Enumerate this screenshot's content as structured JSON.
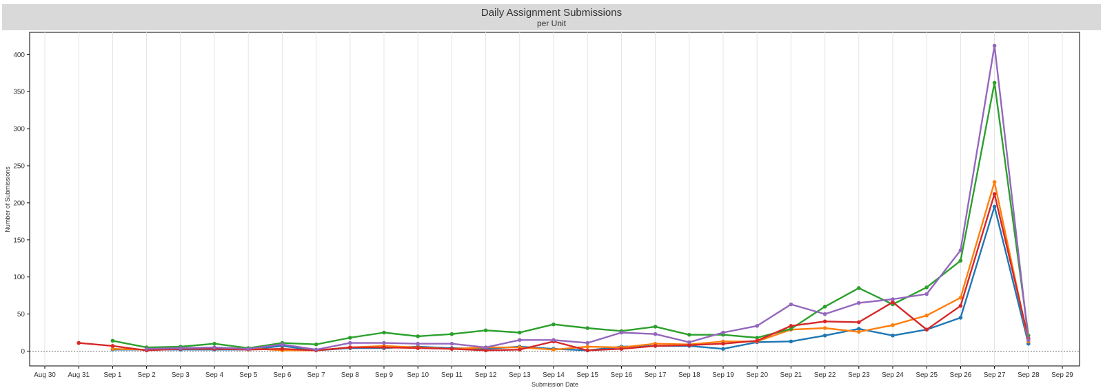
{
  "chart_data": {
    "type": "line",
    "title": "Daily Assignment Submissions",
    "subtitle": "per Unit",
    "xlabel": "Submission Date",
    "ylabel": "Number of Submissions",
    "categories": [
      "Aug 30",
      "Aug 31",
      "Sep 1",
      "Sep 2",
      "Sep 3",
      "Sep 4",
      "Sep 5",
      "Sep 6",
      "Sep 7",
      "Sep 8",
      "Sep 9",
      "Sep 10",
      "Sep 11",
      "Sep 12",
      "Sep 13",
      "Sep 14",
      "Sep 15",
      "Sep 16",
      "Sep 17",
      "Sep 18",
      "Sep 19",
      "Sep 20",
      "Sep 21",
      "Sep 22",
      "Sep 23",
      "Sep 24",
      "Sep 25",
      "Sep 26",
      "Sep 27",
      "Sep 28",
      "Sep 29"
    ],
    "ylim": [
      -20,
      430
    ],
    "yticks": [
      0,
      50,
      100,
      150,
      200,
      250,
      300,
      350,
      400
    ],
    "grid": true,
    "legend": "none",
    "series": [
      {
        "color": "#1f77b4",
        "values": [
          null,
          null,
          2,
          2,
          2,
          2,
          2,
          7,
          1,
          4,
          4,
          6,
          4,
          3,
          6,
          3,
          1,
          6,
          7,
          7,
          3,
          12,
          13,
          21,
          30,
          21,
          29,
          45,
          195,
          10,
          null
        ]
      },
      {
        "color": "#ff7f0e",
        "values": [
          null,
          null,
          3,
          2,
          3,
          3,
          4,
          1,
          1,
          5,
          7,
          5,
          3,
          5,
          5,
          2,
          6,
          5,
          10,
          9,
          13,
          13,
          29,
          31,
          26,
          35,
          48,
          72,
          228,
          13,
          null
        ]
      },
      {
        "color": "#2ca02c",
        "values": [
          null,
          null,
          14,
          5,
          6,
          10,
          4,
          11,
          9,
          18,
          25,
          20,
          23,
          28,
          25,
          36,
          31,
          27,
          33,
          22,
          22,
          18,
          30,
          60,
          85,
          63,
          86,
          122,
          362,
          21,
          null
        ]
      },
      {
        "color": "#d62728",
        "values": [
          null,
          11,
          7,
          1,
          3,
          3,
          2,
          3,
          1,
          5,
          5,
          4,
          3,
          1,
          2,
          13,
          1,
          3,
          7,
          8,
          10,
          14,
          34,
          40,
          39,
          66,
          29,
          61,
          212,
          17,
          null
        ]
      },
      {
        "color": "#9467bd",
        "values": [
          null,
          null,
          null,
          3,
          4,
          5,
          3,
          9,
          2,
          11,
          11,
          10,
          10,
          5,
          15,
          15,
          11,
          25,
          23,
          12,
          25,
          34,
          63,
          50,
          65,
          70,
          77,
          136,
          412,
          15,
          null
        ]
      }
    ]
  }
}
